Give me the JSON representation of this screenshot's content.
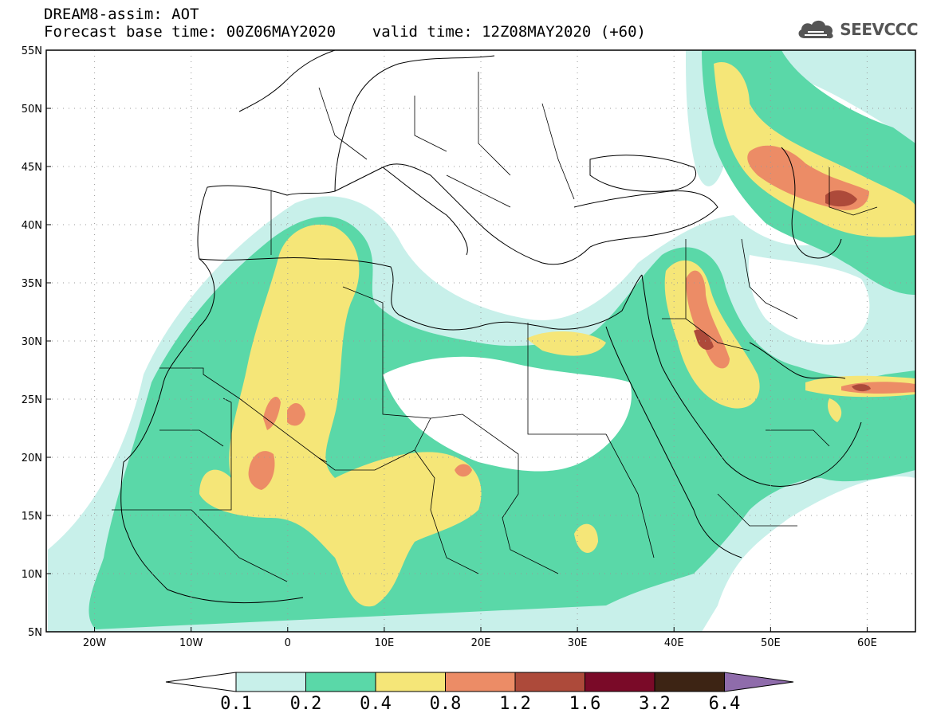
{
  "header": {
    "line1": "DREAM8-assim: AOT",
    "line2": "Forecast base time: 00Z06MAY2020    valid time: 12Z08MAY2020 (+60)"
  },
  "logo": {
    "text": "SEEVCCC",
    "icon": "cloud-icon"
  },
  "axes": {
    "y_labels": [
      "55N",
      "50N",
      "45N",
      "40N",
      "35N",
      "30N",
      "25N",
      "20N",
      "15N",
      "10N",
      "5N"
    ],
    "x_labels": [
      "20W",
      "10W",
      "0",
      "10E",
      "20E",
      "30E",
      "40E",
      "50E",
      "60E"
    ],
    "lon_range": [
      -25,
      65
    ],
    "lat_range": [
      5,
      55
    ]
  },
  "colorbar": {
    "labels": [
      "0.1",
      "0.2",
      "0.4",
      "0.8",
      "1.2",
      "1.6",
      "3.2",
      "6.4"
    ],
    "colors": [
      "#ffffff",
      "#c8f0ea",
      "#5ad8a8",
      "#f5e678",
      "#ec8c66",
      "#ad4a3a",
      "#7a0a28",
      "#3d2414",
      "#8f6cab"
    ]
  },
  "layers": {
    "background": "#ffffff",
    "level1": "#c8f0ea",
    "level2": "#5ad8a8",
    "level3": "#f5e678",
    "level4": "#ec8c66",
    "level5": "#ad4a3a"
  }
}
